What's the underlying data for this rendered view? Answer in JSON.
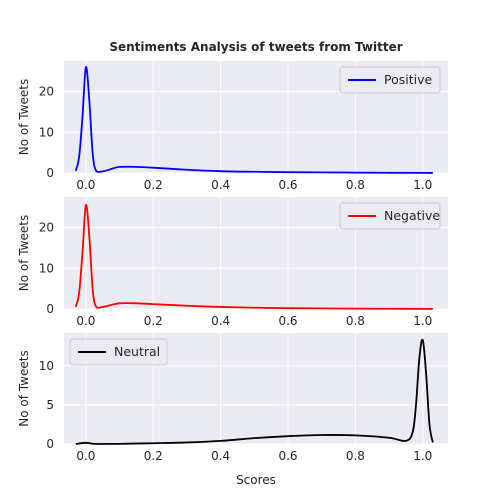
{
  "figure": {
    "title": "Sentiments Analysis of tweets from Twitter",
    "xlabel": "Scores",
    "style": {
      "face": "#eaeaf2",
      "grid": "#ffffff",
      "text": "#262626"
    }
  },
  "chart_data": [
    {
      "type": "line",
      "name": "Positive",
      "color": "#0000ff",
      "ylabel": "No of Tweets",
      "xlim": [
        -0.065,
        1.075
      ],
      "ylim": [
        0,
        27.5
      ],
      "xticks": [
        0.0,
        0.2,
        0.4,
        0.6,
        0.8,
        1.0
      ],
      "xticklabels": [
        "0.0",
        "0.2",
        "0.4",
        "0.6",
        "0.8",
        "1.0"
      ],
      "yticks": [
        0,
        10,
        20
      ],
      "legend": "top-right",
      "x": [
        -0.03,
        -0.02,
        -0.01,
        0.0,
        0.01,
        0.02,
        0.03,
        0.05,
        0.08,
        0.1,
        0.15,
        0.2,
        0.3,
        0.4,
        0.5,
        0.6,
        0.7,
        0.8,
        0.9,
        1.0,
        1.03
      ],
      "y": [
        0.5,
        4,
        14,
        26,
        18,
        5,
        0.6,
        0.4,
        1.1,
        1.5,
        1.5,
        1.3,
        0.8,
        0.45,
        0.3,
        0.2,
        0.15,
        0.1,
        0.05,
        0.03,
        0.02
      ]
    },
    {
      "type": "line",
      "name": "Negative",
      "color": "#ff0000",
      "ylabel": "No of Tweets",
      "xlim": [
        -0.065,
        1.075
      ],
      "ylim": [
        0,
        27.5
      ],
      "xticks": [
        0.0,
        0.2,
        0.4,
        0.6,
        0.8,
        1.0
      ],
      "xticklabels": [
        "0.0",
        "0.2",
        "0.4",
        "0.6",
        "0.8",
        "1.0"
      ],
      "yticks": [
        0,
        10,
        20
      ],
      "legend": "top-right",
      "x": [
        -0.03,
        -0.02,
        -0.01,
        0.0,
        0.01,
        0.02,
        0.03,
        0.05,
        0.08,
        0.1,
        0.15,
        0.2,
        0.3,
        0.4,
        0.5,
        0.6,
        0.7,
        0.8,
        0.9,
        1.0,
        1.03
      ],
      "y": [
        0.5,
        4,
        14,
        25.5,
        18,
        5,
        0.6,
        0.5,
        1.1,
        1.4,
        1.4,
        1.2,
        0.8,
        0.5,
        0.3,
        0.2,
        0.15,
        0.1,
        0.06,
        0.03,
        0.02
      ]
    },
    {
      "type": "line",
      "name": "Neutral",
      "color": "#000000",
      "ylabel": "No of Tweets",
      "xlim": [
        -0.065,
        1.075
      ],
      "ylim": [
        0,
        14.2
      ],
      "xticks": [
        0.0,
        0.2,
        0.4,
        0.6,
        0.8,
        1.0
      ],
      "xticklabels": [
        "0.0",
        "0.2",
        "0.4",
        "0.6",
        "0.8",
        "1.0"
      ],
      "yticks": [
        0,
        5,
        10
      ],
      "legend": "top-left",
      "x": [
        -0.03,
        0.0,
        0.03,
        0.1,
        0.2,
        0.3,
        0.4,
        0.5,
        0.6,
        0.7,
        0.8,
        0.9,
        0.95,
        0.97,
        0.98,
        0.99,
        1.0,
        1.01,
        1.02,
        1.03
      ],
      "y": [
        0.0,
        0.15,
        0.0,
        0.02,
        0.1,
        0.2,
        0.4,
        0.75,
        1.0,
        1.15,
        1.1,
        0.8,
        0.4,
        1.5,
        5.0,
        11.0,
        13.3,
        9.0,
        2.5,
        0.2
      ]
    }
  ]
}
